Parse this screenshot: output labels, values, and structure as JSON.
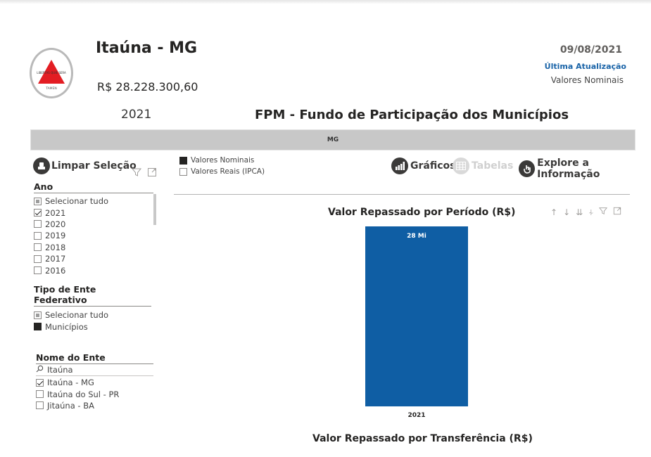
{
  "header": {
    "city": "Itaúna - MG",
    "amount": "R$ 28.228.300,60",
    "year": "2021",
    "date": "09/08/2021",
    "update_label": "Última Atualização",
    "values_mode": "Valores Nominais",
    "title": "FPM - Fundo de Participação dos Municípios",
    "logo_text": "LIBERTAS QUÆ SERA TAMEN"
  },
  "state_bar": {
    "label": "MG"
  },
  "toolbar": {
    "clear": "Limpar Seleção",
    "charts": "Gráficos",
    "tables": "Tabelas",
    "explore": "Explore a Informação"
  },
  "value_toggle": {
    "items": [
      {
        "label": "Valores Nominais",
        "state": "filled"
      },
      {
        "label": "Valores Reais (IPCA)",
        "state": "empty"
      }
    ]
  },
  "slicers": {
    "year": {
      "title": "Ano",
      "items": [
        {
          "label": "Selecionar tudo",
          "state": "partial"
        },
        {
          "label": "2021",
          "state": "checked"
        },
        {
          "label": "2020",
          "state": "empty"
        },
        {
          "label": "2019",
          "state": "empty"
        },
        {
          "label": "2018",
          "state": "empty"
        },
        {
          "label": "2017",
          "state": "empty"
        },
        {
          "label": "2016",
          "state": "empty"
        }
      ]
    },
    "entity_type": {
      "title": "Tipo de Ente Federativo",
      "items": [
        {
          "label": "Selecionar tudo",
          "state": "partial"
        },
        {
          "label": "Municípios",
          "state": "filled"
        }
      ]
    },
    "entity_name": {
      "title": "Nome do Ente",
      "search_value": "Itaúna",
      "items": [
        {
          "label": "Itaúna - MG",
          "state": "checked"
        },
        {
          "label": "Itaúna do Sul - PR",
          "state": "empty"
        },
        {
          "label": "Jitaúna - BA",
          "state": "empty"
        }
      ]
    }
  },
  "chart": {
    "title": "Valor Repassado por Período (R$)",
    "bottom_title": "Valor Repassado por Transferência (R$)",
    "color": "#0f5ea4"
  },
  "chart_data": {
    "type": "bar",
    "categories": [
      "2021"
    ],
    "values": [
      28228300.6
    ],
    "data_labels": [
      "28 Mi"
    ],
    "title": "Valor Repassado por Período (R$)",
    "xlabel": "",
    "ylabel": "",
    "ylim": [
      0,
      28228300.6
    ],
    "grid": false
  }
}
